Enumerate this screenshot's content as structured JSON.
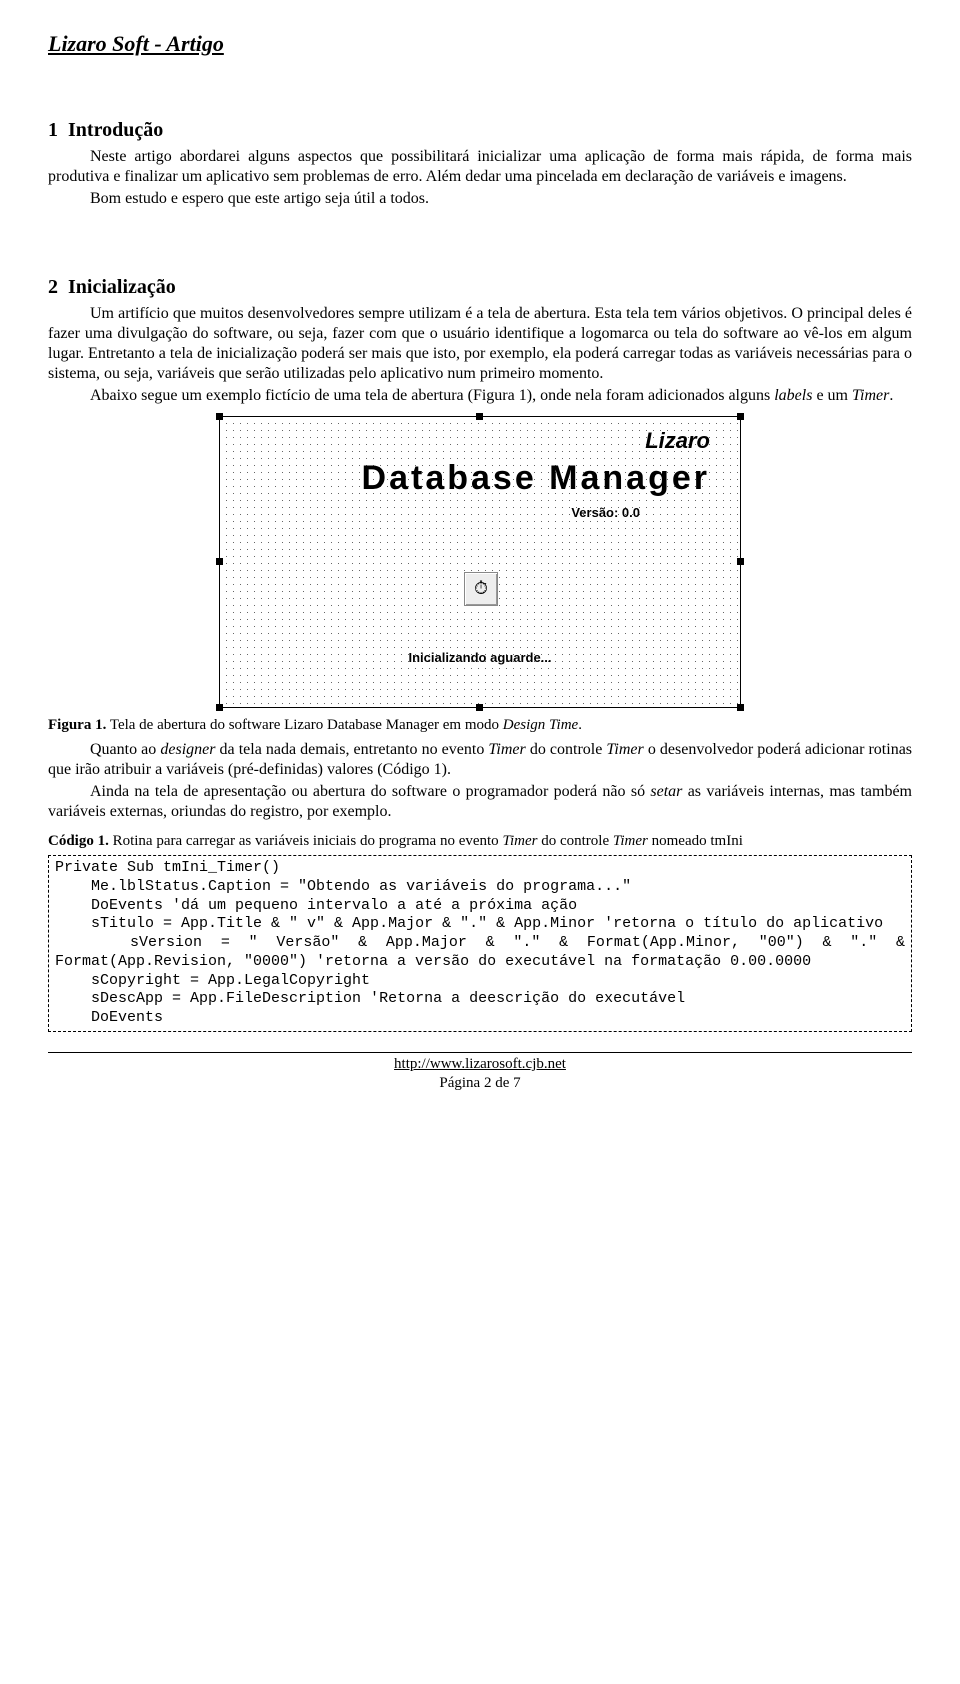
{
  "header": {
    "title": "Lizaro Soft - Artigo"
  },
  "section1": {
    "num": "1",
    "title": "Introdução",
    "para1": "Neste artigo abordarei alguns aspectos que possibilitará inicializar uma aplicação de forma mais rápida, de forma mais produtiva e finalizar um aplicativo sem problemas de erro. Além dedar uma pincelada em declaração de variáveis e imagens.",
    "para2": "Bom estudo e espero que este artigo seja útil a todos."
  },
  "section2": {
    "num": "2",
    "title": "Inicialização",
    "para1_a": "Um artifício que muitos desenvolvedores sempre utilizam é a tela de abertura. Esta tela tem vários objetivos. O principal deles é fazer uma divulgação do software, ou seja, fazer com que o usuário identifique a logomarca ou tela do software ao vê-los em algum lugar. Entretanto a tela de inicialização poderá ser mais que isto, por exemplo, ela poderá carregar todas as variáveis necessárias para o sistema, ou seja, variáveis que serão utilizadas pelo aplicativo num primeiro momento.",
    "para2_a": "Abaixo segue um exemplo fictício de uma tela de abertura (Figura 1), onde nela foram adicionados alguns ",
    "para2_b": "labels",
    "para2_c": " e um ",
    "para2_d": "Timer",
    "para2_e": "."
  },
  "splash": {
    "brand": "Lizaro",
    "title": "Database  Manager",
    "version": "Versão: 0.0",
    "timer_glyph": "⏱",
    "status": "Inicializando aguarde..."
  },
  "fig1": {
    "label": "Figura 1.",
    "text_a": " Tela de abertura do software Lizaro Database Manager em modo ",
    "text_b": "Design Time",
    "text_c": "."
  },
  "after_fig": {
    "p1_a": "Quanto ao ",
    "p1_b": "designer",
    "p1_c": " da tela nada demais, entretanto no evento ",
    "p1_d": "Timer",
    "p1_e": " do controle ",
    "p1_f": "Timer",
    "p1_g": " o desenvolvedor poderá adicionar rotinas que irão atribuir a variáveis (pré-definidas) valores (Código 1).",
    "p2_a": "Ainda na tela de apresentação ou abertura do software o programador poderá não só ",
    "p2_b": "setar",
    "p2_c": " as variáveis internas, mas também variáveis externas, oriundas do registro, por exemplo."
  },
  "code1": {
    "label": "Código 1.",
    "caption_a": " Rotina para carregar as variáveis iniciais do programa no evento ",
    "caption_b": "Timer",
    "caption_c": " do controle ",
    "caption_d": "Timer",
    "caption_e": " nomeado tmIni",
    "code": "Private Sub tmIni_Timer()\n    Me.lblStatus.Caption = \"Obtendo as variáveis do programa...\"\n    DoEvents 'dá um pequeno intervalo a até a próxima ação\n    sTitulo = App.Title & \" v\" & App.Major & \".\" & App.Minor 'retorna o título do aplicativo\n    sVersion = \" Versão\" & App.Major & \".\" & Format(App.Minor, \"00\") & \".\" & Format(App.Revision, \"0000\") 'retorna a versão do executável na formatação 0.00.0000\n    sCopyright = App.LegalCopyright\n    sDescApp = App.FileDescription 'Retorna a deescrição do executável\n    DoEvents"
  },
  "footer": {
    "url": "http://www.lizarosoft.cjb.net",
    "page": "Página 2 de 7"
  }
}
